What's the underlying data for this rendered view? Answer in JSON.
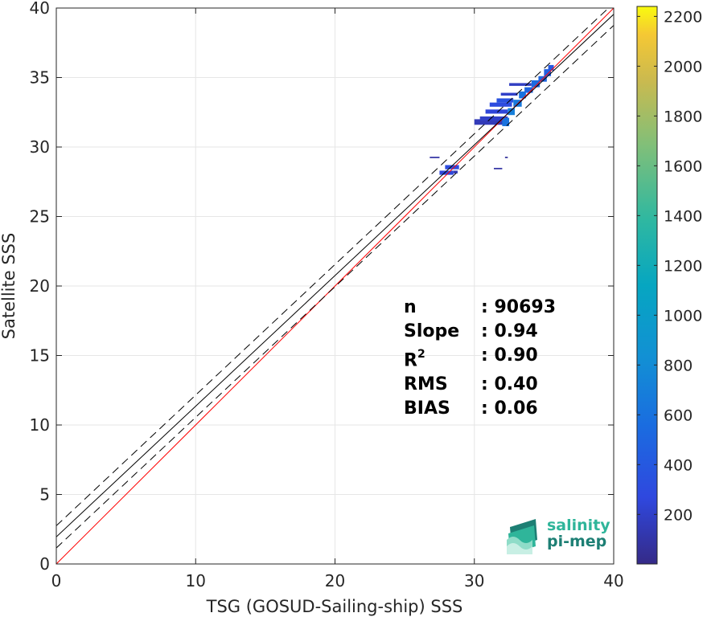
{
  "chart_data": {
    "type": "heatmap",
    "xlabel": "TSG (GOSUD-Sailing-ship) SSS",
    "ylabel": "Satellite SSS",
    "xlim": [
      0,
      40
    ],
    "ylim": [
      0,
      40
    ],
    "xticks": [
      "0",
      "10",
      "20",
      "30",
      "40"
    ],
    "yticks": [
      "0",
      "5",
      "10",
      "15",
      "20",
      "25",
      "30",
      "35",
      "40"
    ],
    "grid": true,
    "colorbar": {
      "range": [
        1,
        2240
      ],
      "ticks": [
        "200",
        "400",
        "600",
        "800",
        "1000",
        "1200",
        "1400",
        "1600",
        "1800",
        "2000",
        "2200"
      ],
      "colormap": "parula"
    },
    "lines": [
      {
        "kind": "one-to-one",
        "color": "#ff0000",
        "slope": 1,
        "intercept": 0
      },
      {
        "kind": "regression-fit",
        "color": "#000000",
        "slope": 0.94,
        "intercept": 1.95
      },
      {
        "kind": "fit-plus-2rms",
        "color": "#000000",
        "dashed": true,
        "slope": 0.94,
        "intercept": 2.75
      },
      {
        "kind": "fit-minus-2rms",
        "color": "#000000",
        "dashed": true,
        "slope": 0.94,
        "intercept": 1.15
      }
    ],
    "density_bins": [
      {
        "x": 30.0,
        "y": 31.6,
        "w": 2.2,
        "h": 0.4,
        "count": 150
      },
      {
        "x": 30.4,
        "y": 31.9,
        "w": 2.0,
        "h": 0.3,
        "count": 200
      },
      {
        "x": 30.8,
        "y": 32.4,
        "w": 1.6,
        "h": 0.3,
        "count": 250
      },
      {
        "x": 31.1,
        "y": 32.9,
        "w": 1.6,
        "h": 0.3,
        "count": 300
      },
      {
        "x": 31.6,
        "y": 33.2,
        "w": 1.2,
        "h": 0.3,
        "count": 350
      },
      {
        "x": 32.0,
        "y": 31.5,
        "w": 0.5,
        "h": 0.6,
        "count": 600
      },
      {
        "x": 32.4,
        "y": 32.3,
        "w": 0.5,
        "h": 0.5,
        "count": 700
      },
      {
        "x": 32.8,
        "y": 32.9,
        "w": 0.6,
        "h": 0.5,
        "count": 650
      },
      {
        "x": 33.2,
        "y": 33.5,
        "w": 0.5,
        "h": 0.5,
        "count": 600
      },
      {
        "x": 33.6,
        "y": 33.9,
        "w": 0.6,
        "h": 0.4,
        "count": 500
      },
      {
        "x": 34.1,
        "y": 34.3,
        "w": 0.6,
        "h": 0.5,
        "count": 550
      },
      {
        "x": 34.6,
        "y": 34.7,
        "w": 0.6,
        "h": 0.4,
        "count": 500
      },
      {
        "x": 35.0,
        "y": 35.1,
        "w": 0.5,
        "h": 0.5,
        "count": 450
      },
      {
        "x": 35.3,
        "y": 35.5,
        "w": 0.4,
        "h": 0.4,
        "count": 400
      },
      {
        "x": 32.5,
        "y": 34.4,
        "w": 1.6,
        "h": 0.2,
        "count": 180
      },
      {
        "x": 31.9,
        "y": 33.7,
        "w": 1.2,
        "h": 0.2,
        "count": 200
      },
      {
        "x": 27.5,
        "y": 28.0,
        "w": 1.0,
        "h": 0.3,
        "count": 250
      },
      {
        "x": 27.9,
        "y": 28.4,
        "w": 1.0,
        "h": 0.3,
        "count": 300
      },
      {
        "x": 28.5,
        "y": 28.1,
        "w": 0.3,
        "h": 0.2,
        "count": 150
      },
      {
        "x": 26.8,
        "y": 29.2,
        "w": 0.7,
        "h": 0.1,
        "count": 90
      },
      {
        "x": 31.4,
        "y": 28.4,
        "w": 0.6,
        "h": 0.1,
        "count": 90
      },
      {
        "x": 32.2,
        "y": 29.2,
        "w": 0.2,
        "h": 0.1,
        "count": 60
      }
    ]
  },
  "stats": {
    "n_label": "n",
    "n_value": ": 90693",
    "slope_label": "Slope",
    "slope_value": ": 0.94",
    "r2_label": "R",
    "r2_sup": "2",
    "r2_value": ": 0.90",
    "rms_label": "RMS",
    "rms_value": ": 0.40",
    "bias_label": "BIAS",
    "bias_value": ": 0.06"
  },
  "logo": {
    "line1": "salinity",
    "line2": "pi-mep"
  }
}
